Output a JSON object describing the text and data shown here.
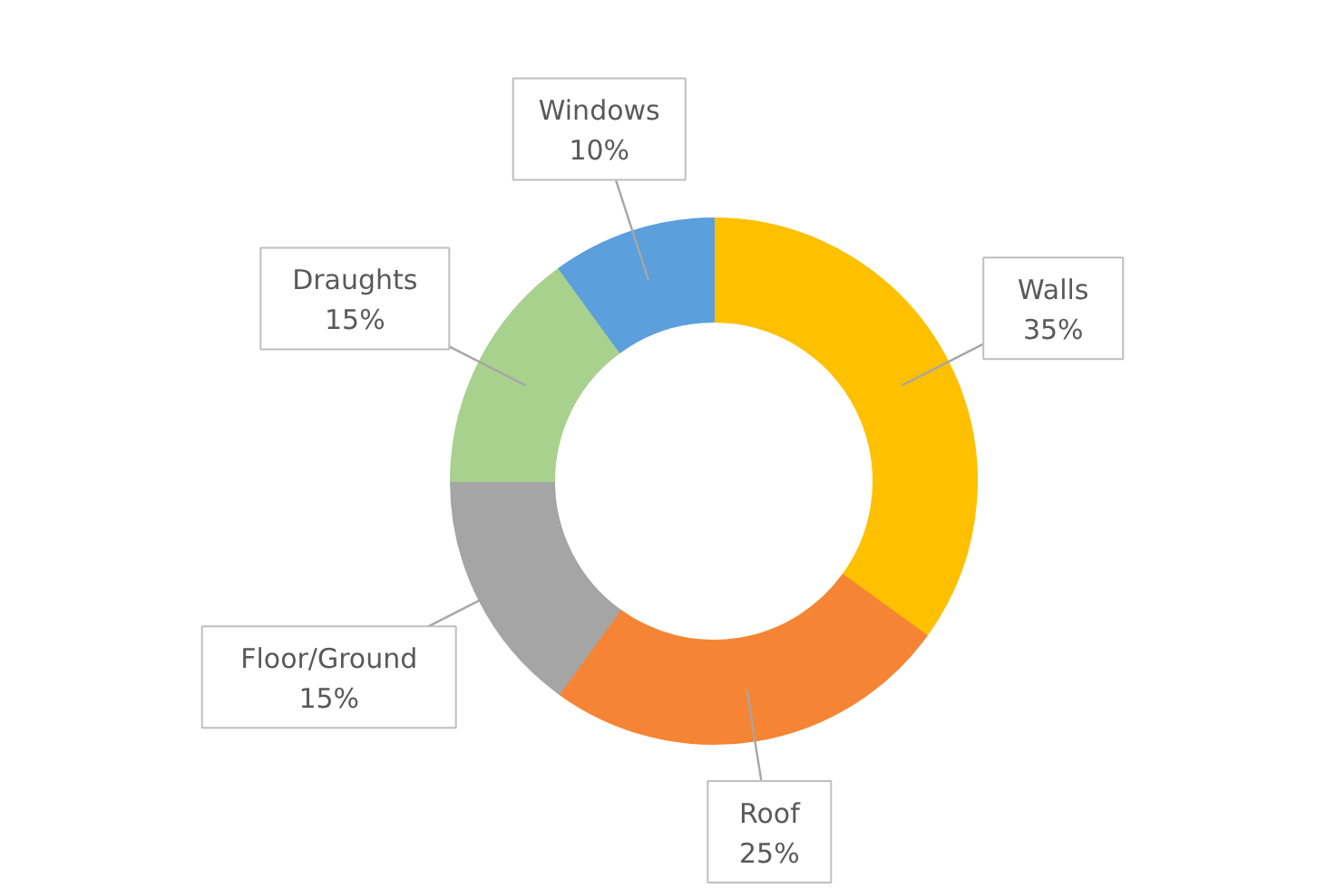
{
  "chart_data": {
    "type": "donut",
    "categories": [
      "Walls",
      "Roof",
      "Floor/Ground",
      "Draughts",
      "Windows"
    ],
    "values": [
      35,
      25,
      15,
      15,
      10
    ],
    "colors": [
      "#ffc000",
      "#f58534",
      "#a5a5a5",
      "#a9d18e",
      "#5b9fdc"
    ],
    "value_labels": [
      "35%",
      "25%",
      "15%",
      "15%",
      "10%"
    ]
  }
}
